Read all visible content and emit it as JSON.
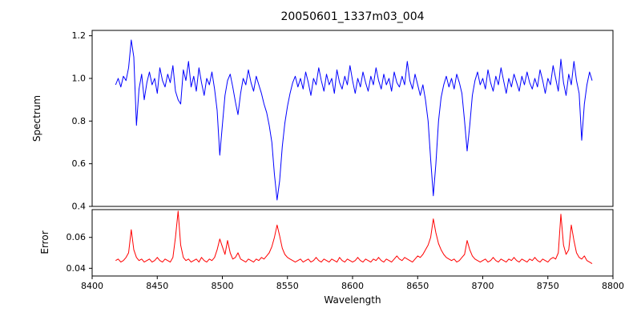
{
  "colors": {
    "background": "#ffffff",
    "axis": "#000000",
    "spectrum_line": "#0000ff",
    "error_line": "#ff0000"
  },
  "chart_data": {
    "type": "line",
    "title": "20050601_1337m03_004",
    "xlabel": "Wavelength",
    "xlim": [
      8400,
      8800
    ],
    "x_ticks": [
      "8400",
      "8450",
      "8500",
      "8550",
      "8600",
      "8650",
      "8700",
      "8750",
      "8800"
    ],
    "x_start": 8418,
    "x_step": 2,
    "grid": false,
    "legend": "none",
    "subplots": [
      {
        "name": "spectrum",
        "ylabel": "Spectrum",
        "ylim": [
          0.4,
          1.225
        ],
        "y_ticks": [
          "0.4",
          "0.6",
          "0.8",
          "1.0",
          "1.2"
        ],
        "color": "#0000ff",
        "values": [
          0.97,
          1.0,
          0.96,
          1.01,
          0.99,
          1.05,
          1.18,
          1.1,
          0.78,
          0.95,
          1.02,
          0.9,
          0.98,
          1.03,
          0.97,
          1.0,
          0.93,
          1.05,
          0.99,
          0.96,
          1.02,
          0.98,
          1.06,
          0.94,
          0.9,
          0.88,
          1.04,
          0.99,
          1.08,
          0.96,
          1.01,
          0.94,
          1.05,
          0.98,
          0.92,
          1.0,
          0.97,
          1.03,
          0.95,
          0.85,
          0.64,
          0.78,
          0.92,
          0.99,
          1.02,
          0.96,
          0.89,
          0.83,
          0.93,
          1.0,
          0.97,
          1.04,
          0.98,
          0.94,
          1.01,
          0.97,
          0.93,
          0.88,
          0.84,
          0.78,
          0.7,
          0.55,
          0.43,
          0.52,
          0.68,
          0.79,
          0.87,
          0.93,
          0.98,
          1.01,
          0.96,
          1.0,
          0.95,
          1.03,
          0.98,
          0.92,
          1.0,
          0.97,
          1.05,
          0.99,
          0.94,
          1.02,
          0.97,
          1.0,
          0.93,
          1.04,
          0.98,
          0.95,
          1.01,
          0.97,
          1.06,
          0.99,
          0.93,
          1.0,
          0.96,
          1.03,
          0.98,
          0.94,
          1.01,
          0.97,
          1.05,
          0.99,
          0.95,
          1.02,
          0.97,
          1.0,
          0.94,
          1.03,
          0.98,
          0.96,
          1.01,
          0.97,
          1.08,
          0.99,
          0.95,
          1.02,
          0.97,
          0.92,
          0.97,
          0.9,
          0.8,
          0.62,
          0.45,
          0.6,
          0.8,
          0.91,
          0.97,
          1.01,
          0.96,
          1.0,
          0.95,
          1.02,
          0.98,
          0.93,
          0.8,
          0.66,
          0.78,
          0.92,
          0.99,
          1.03,
          0.97,
          1.0,
          0.95,
          1.04,
          0.98,
          0.94,
          1.01,
          0.97,
          1.05,
          0.99,
          0.93,
          1.0,
          0.96,
          1.02,
          0.98,
          0.94,
          1.01,
          0.97,
          1.03,
          0.98,
          0.95,
          1.0,
          0.96,
          1.04,
          0.99,
          0.93,
          1.0,
          0.97,
          1.06,
          1.0,
          0.94,
          1.09,
          0.98,
          0.92,
          1.02,
          0.97,
          1.08,
          0.99,
          0.93,
          0.71,
          0.88,
          0.97,
          1.03,
          0.99
        ]
      },
      {
        "name": "error",
        "ylabel": "Error",
        "ylim": [
          0.035,
          0.078
        ],
        "y_ticks": [
          "0.04",
          "0.06"
        ],
        "color": "#ff0000",
        "values": [
          0.045,
          0.046,
          0.044,
          0.045,
          0.047,
          0.05,
          0.065,
          0.052,
          0.047,
          0.045,
          0.046,
          0.044,
          0.045,
          0.046,
          0.044,
          0.045,
          0.047,
          0.045,
          0.044,
          0.046,
          0.045,
          0.044,
          0.047,
          0.06,
          0.077,
          0.055,
          0.047,
          0.045,
          0.046,
          0.044,
          0.045,
          0.046,
          0.044,
          0.047,
          0.045,
          0.044,
          0.046,
          0.045,
          0.047,
          0.052,
          0.059,
          0.054,
          0.049,
          0.058,
          0.05,
          0.046,
          0.047,
          0.05,
          0.046,
          0.045,
          0.044,
          0.046,
          0.045,
          0.044,
          0.046,
          0.045,
          0.047,
          0.046,
          0.048,
          0.05,
          0.054,
          0.06,
          0.068,
          0.061,
          0.053,
          0.049,
          0.047,
          0.046,
          0.045,
          0.044,
          0.045,
          0.046,
          0.044,
          0.045,
          0.046,
          0.044,
          0.045,
          0.047,
          0.045,
          0.044,
          0.046,
          0.045,
          0.044,
          0.046,
          0.045,
          0.044,
          0.047,
          0.045,
          0.044,
          0.046,
          0.045,
          0.044,
          0.045,
          0.047,
          0.045,
          0.044,
          0.046,
          0.045,
          0.044,
          0.046,
          0.045,
          0.047,
          0.045,
          0.044,
          0.046,
          0.045,
          0.044,
          0.046,
          0.048,
          0.046,
          0.045,
          0.047,
          0.046,
          0.045,
          0.044,
          0.046,
          0.048,
          0.047,
          0.049,
          0.052,
          0.055,
          0.06,
          0.072,
          0.063,
          0.056,
          0.052,
          0.049,
          0.047,
          0.046,
          0.045,
          0.046,
          0.044,
          0.045,
          0.047,
          0.049,
          0.058,
          0.052,
          0.048,
          0.046,
          0.045,
          0.044,
          0.045,
          0.046,
          0.044,
          0.045,
          0.047,
          0.045,
          0.044,
          0.046,
          0.045,
          0.044,
          0.046,
          0.045,
          0.047,
          0.045,
          0.044,
          0.046,
          0.045,
          0.044,
          0.046,
          0.045,
          0.047,
          0.045,
          0.044,
          0.046,
          0.045,
          0.044,
          0.046,
          0.047,
          0.046,
          0.05,
          0.075,
          0.055,
          0.049,
          0.052,
          0.068,
          0.058,
          0.05,
          0.047,
          0.046,
          0.048,
          0.045,
          0.044,
          0.043
        ]
      }
    ]
  }
}
